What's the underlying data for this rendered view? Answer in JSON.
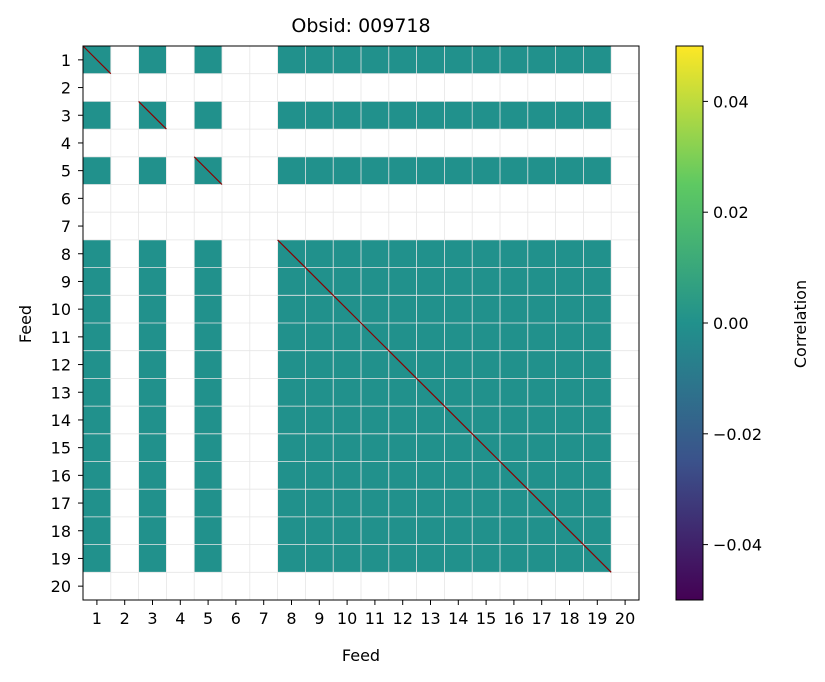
{
  "chart_data": {
    "type": "heatmap",
    "title": "Obsid: 009718",
    "xlabel": "Feed",
    "ylabel": "Feed",
    "feeds": [
      "1",
      "2",
      "3",
      "4",
      "5",
      "6",
      "7",
      "8",
      "9",
      "10",
      "11",
      "12",
      "13",
      "14",
      "15",
      "16",
      "17",
      "18",
      "19",
      "20"
    ],
    "active_feeds": [
      1,
      3,
      5,
      8,
      9,
      10,
      11,
      12,
      13,
      14,
      15,
      16,
      17,
      18,
      19
    ],
    "off_diagonal_value": 0.0,
    "cell_fill_color": "#21918c",
    "diagonal_color": "#8b0000",
    "nan_color": "#ffffff",
    "grid": true,
    "colorbar": {
      "label": "Correlation",
      "range": [
        -0.05,
        0.05
      ],
      "ticks": [
        -0.04,
        -0.02,
        0.0,
        0.02,
        0.04
      ],
      "tick_labels": [
        "−0.04",
        "−0.02",
        "0.00",
        "0.02",
        "0.04"
      ],
      "colormap": "viridis",
      "colors": [
        "#440154",
        "#3b528b",
        "#21918c",
        "#5ec962",
        "#fde725"
      ]
    }
  }
}
